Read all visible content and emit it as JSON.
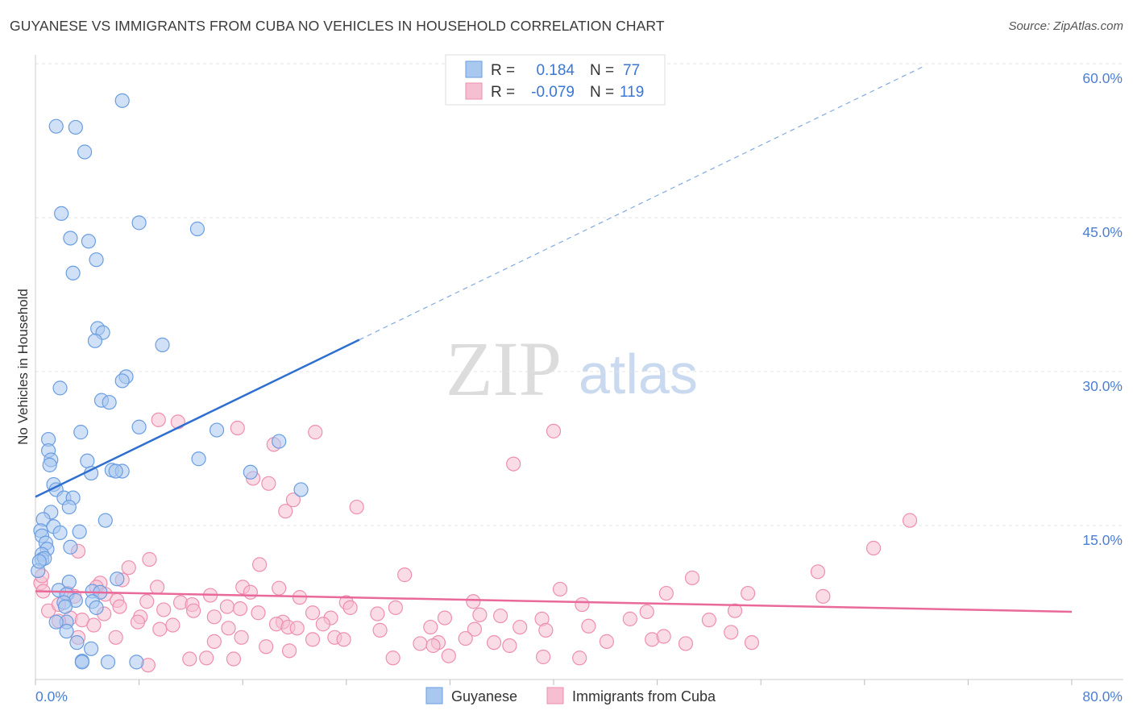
{
  "title": "GUYANESE VS IMMIGRANTS FROM CUBA NO VEHICLES IN HOUSEHOLD CORRELATION CHART",
  "source": "Source: ZipAtlas.com",
  "watermark": {
    "zip": "ZIP",
    "atlas": "atlas"
  },
  "colors": {
    "blue_fill": "#a9c8f0",
    "blue_stroke": "#6a9de0",
    "blue_line": "#2e6fd0",
    "pink_fill": "#f6bfd1",
    "pink_stroke": "#ee8fae",
    "pink_line": "#e8699a",
    "tick_color": "#4a7fd4",
    "grid": "#e3e3e3"
  },
  "legend_top": {
    "rows": [
      {
        "r_label": "R =",
        "r_value": "0.184",
        "n_label": "N =",
        "n_value": "77"
      },
      {
        "r_label": "R =",
        "r_value": "-0.079",
        "n_label": "N =",
        "n_value": "119"
      }
    ]
  },
  "legend_bottom": {
    "items": [
      "Guyanese",
      "Immigrants from Cuba"
    ]
  },
  "chart_data": {
    "type": "scatter",
    "title": "GUYANESE VS IMMIGRANTS FROM CUBA NO VEHICLES IN HOUSEHOLD CORRELATION CHART",
    "xlabel": "",
    "ylabel": "No Vehicles in Household",
    "xlim": [
      0,
      80
    ],
    "ylim": [
      0,
      60
    ],
    "x_tick_labels": [
      "0.0%",
      "80.0%"
    ],
    "y_ticks": [
      15,
      30,
      45,
      60
    ],
    "y_tick_labels": [
      "15.0%",
      "30.0%",
      "45.0%",
      "60.0%"
    ],
    "grid": true,
    "series": [
      {
        "name": "Guyanese",
        "color": "#6a9de0",
        "r": 0.184,
        "n": 77,
        "trend": {
          "x_start": 0,
          "y_start": 17.8,
          "x_solid_end": 25,
          "y_solid_end": 33.1,
          "x_dash_end": 68.5,
          "y_dash_end": 59.7
        },
        "points": [
          [
            6.7,
            56.4
          ],
          [
            1.6,
            53.9
          ],
          [
            3.1,
            53.8
          ],
          [
            3.8,
            51.4
          ],
          [
            2.0,
            45.4
          ],
          [
            8.0,
            44.5
          ],
          [
            12.5,
            43.9
          ],
          [
            2.7,
            43.0
          ],
          [
            4.1,
            42.7
          ],
          [
            4.7,
            40.9
          ],
          [
            2.9,
            39.6
          ],
          [
            4.8,
            34.2
          ],
          [
            5.2,
            33.8
          ],
          [
            4.6,
            33.0
          ],
          [
            9.8,
            32.6
          ],
          [
            7.0,
            29.5
          ],
          [
            6.7,
            29.1
          ],
          [
            1.9,
            28.4
          ],
          [
            5.1,
            27.2
          ],
          [
            5.7,
            27.0
          ],
          [
            8.0,
            24.6
          ],
          [
            14.0,
            24.3
          ],
          [
            3.5,
            24.1
          ],
          [
            18.8,
            23.2
          ],
          [
            1.0,
            23.4
          ],
          [
            1.0,
            22.3
          ],
          [
            12.6,
            21.5
          ],
          [
            4.0,
            21.3
          ],
          [
            1.2,
            21.4
          ],
          [
            1.1,
            20.9
          ],
          [
            5.9,
            20.4
          ],
          [
            6.7,
            20.3
          ],
          [
            4.3,
            20.1
          ],
          [
            6.2,
            20.3
          ],
          [
            16.6,
            20.2
          ],
          [
            1.4,
            19.0
          ],
          [
            1.6,
            18.5
          ],
          [
            20.5,
            18.5
          ],
          [
            2.2,
            17.7
          ],
          [
            2.9,
            17.7
          ],
          [
            2.6,
            16.8
          ],
          [
            1.2,
            16.3
          ],
          [
            0.6,
            15.6
          ],
          [
            5.4,
            15.5
          ],
          [
            1.4,
            14.9
          ],
          [
            0.4,
            14.5
          ],
          [
            1.9,
            14.3
          ],
          [
            3.4,
            14.4
          ],
          [
            0.5,
            14.0
          ],
          [
            0.8,
            13.3
          ],
          [
            0.9,
            12.7
          ],
          [
            2.7,
            12.9
          ],
          [
            0.5,
            12.2
          ],
          [
            0.5,
            11.7
          ],
          [
            0.7,
            11.8
          ],
          [
            6.3,
            9.8
          ],
          [
            2.6,
            9.5
          ],
          [
            1.8,
            8.7
          ],
          [
            4.4,
            8.6
          ],
          [
            5.0,
            8.5
          ],
          [
            2.4,
            8.3
          ],
          [
            3.1,
            7.7
          ],
          [
            2.2,
            7.5
          ],
          [
            2.3,
            7.1
          ],
          [
            4.4,
            7.6
          ],
          [
            4.7,
            7.0
          ],
          [
            2.4,
            5.6
          ],
          [
            1.6,
            5.6
          ],
          [
            2.4,
            4.7
          ],
          [
            3.2,
            3.6
          ],
          [
            4.3,
            3.0
          ],
          [
            5.6,
            1.7
          ],
          [
            3.6,
            1.8
          ],
          [
            3.6,
            1.7
          ],
          [
            7.8,
            1.7
          ],
          [
            0.2,
            10.6
          ],
          [
            0.3,
            11.5
          ]
        ]
      },
      {
        "name": "Immigrants from Cuba",
        "color": "#ee8fae",
        "r": -0.079,
        "n": 119,
        "trend": {
          "x_start": 0,
          "y_start": 8.6,
          "x_end": 80,
          "y_end": 6.6
        },
        "points": [
          [
            9.5,
            25.3
          ],
          [
            11.0,
            25.1
          ],
          [
            15.6,
            24.5
          ],
          [
            21.6,
            24.1
          ],
          [
            40.0,
            24.2
          ],
          [
            18.4,
            22.9
          ],
          [
            36.9,
            21.0
          ],
          [
            16.8,
            19.6
          ],
          [
            18.0,
            19.1
          ],
          [
            19.9,
            17.5
          ],
          [
            24.8,
            16.8
          ],
          [
            19.3,
            16.4
          ],
          [
            67.5,
            15.5
          ],
          [
            64.7,
            12.8
          ],
          [
            3.3,
            12.5
          ],
          [
            8.8,
            11.7
          ],
          [
            17.3,
            11.2
          ],
          [
            7.2,
            10.9
          ],
          [
            28.5,
            10.2
          ],
          [
            60.4,
            10.5
          ],
          [
            50.7,
            9.9
          ],
          [
            0.4,
            9.4
          ],
          [
            5.0,
            9.4
          ],
          [
            6.7,
            9.7
          ],
          [
            4.7,
            9.0
          ],
          [
            9.4,
            9.0
          ],
          [
            16.0,
            9.0
          ],
          [
            18.8,
            8.9
          ],
          [
            0.6,
            8.6
          ],
          [
            2.5,
            8.4
          ],
          [
            3.0,
            8.1
          ],
          [
            5.4,
            8.3
          ],
          [
            6.3,
            7.7
          ],
          [
            8.6,
            7.6
          ],
          [
            11.2,
            7.5
          ],
          [
            12.1,
            7.3
          ],
          [
            13.5,
            8.2
          ],
          [
            14.8,
            7.1
          ],
          [
            16.6,
            8.5
          ],
          [
            20.4,
            8.0
          ],
          [
            24.0,
            7.5
          ],
          [
            24.3,
            7.0
          ],
          [
            27.8,
            7.0
          ],
          [
            33.8,
            7.6
          ],
          [
            40.5,
            8.8
          ],
          [
            42.2,
            7.3
          ],
          [
            48.7,
            8.4
          ],
          [
            55.0,
            8.4
          ],
          [
            60.8,
            8.1
          ],
          [
            1.0,
            6.7
          ],
          [
            1.8,
            7.3
          ],
          [
            2.7,
            6.0
          ],
          [
            3.6,
            5.8
          ],
          [
            5.3,
            6.4
          ],
          [
            6.5,
            7.1
          ],
          [
            8.1,
            6.1
          ],
          [
            9.9,
            6.8
          ],
          [
            12.2,
            6.7
          ],
          [
            13.8,
            6.1
          ],
          [
            15.8,
            6.9
          ],
          [
            17.2,
            6.5
          ],
          [
            19.1,
            5.6
          ],
          [
            21.4,
            6.5
          ],
          [
            22.8,
            6.0
          ],
          [
            26.4,
            6.4
          ],
          [
            31.6,
            6.0
          ],
          [
            34.3,
            6.3
          ],
          [
            35.9,
            6.2
          ],
          [
            39.1,
            5.9
          ],
          [
            45.9,
            5.9
          ],
          [
            47.2,
            6.6
          ],
          [
            52.0,
            5.8
          ],
          [
            54.0,
            6.7
          ],
          [
            1.8,
            5.7
          ],
          [
            4.5,
            5.3
          ],
          [
            7.9,
            5.6
          ],
          [
            9.6,
            4.9
          ],
          [
            10.6,
            5.3
          ],
          [
            14.9,
            5.0
          ],
          [
            18.6,
            5.4
          ],
          [
            19.5,
            5.1
          ],
          [
            20.2,
            5.0
          ],
          [
            22.2,
            5.4
          ],
          [
            26.6,
            4.8
          ],
          [
            30.5,
            5.1
          ],
          [
            33.9,
            4.9
          ],
          [
            37.4,
            5.1
          ],
          [
            39.4,
            4.8
          ],
          [
            42.7,
            5.2
          ],
          [
            53.7,
            4.6
          ],
          [
            3.3,
            4.1
          ],
          [
            6.2,
            4.1
          ],
          [
            13.8,
            3.7
          ],
          [
            15.9,
            4.1
          ],
          [
            21.4,
            3.9
          ],
          [
            23.1,
            4.1
          ],
          [
            23.8,
            3.9
          ],
          [
            29.7,
            3.5
          ],
          [
            31.1,
            3.6
          ],
          [
            33.2,
            4.0
          ],
          [
            35.4,
            3.6
          ],
          [
            36.6,
            3.3
          ],
          [
            44.1,
            3.7
          ],
          [
            47.6,
            3.9
          ],
          [
            48.5,
            4.2
          ],
          [
            50.2,
            3.5
          ],
          [
            11.9,
            2.0
          ],
          [
            13.2,
            2.1
          ],
          [
            15.3,
            2.0
          ],
          [
            17.8,
            3.2
          ],
          [
            19.6,
            2.8
          ],
          [
            27.6,
            2.1
          ],
          [
            31.9,
            2.3
          ],
          [
            39.2,
            2.2
          ],
          [
            42.0,
            2.1
          ],
          [
            8.7,
            1.4
          ],
          [
            55.3,
            3.6
          ],
          [
            30.7,
            3.3
          ],
          [
            0.5,
            10.1
          ]
        ]
      }
    ]
  }
}
